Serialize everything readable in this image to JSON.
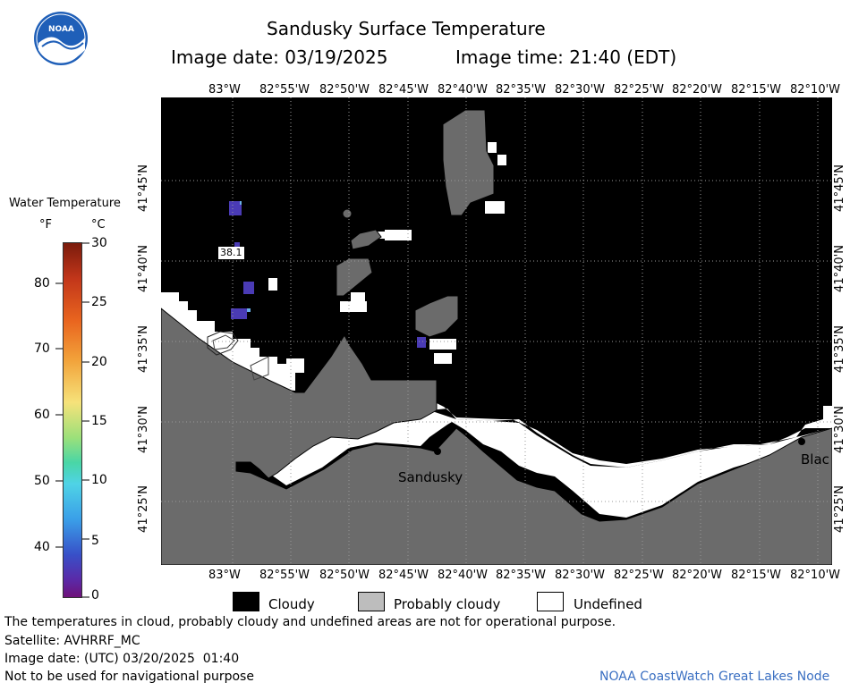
{
  "header": {
    "title": "Sandusky Surface Temperature",
    "date_label": "Image date: 03/19/2025",
    "time_label": "Image time: 21:40 (EDT)",
    "logo_text": "NOAA"
  },
  "map": {
    "lon_labels": [
      "83°W",
      "82°55'W",
      "82°50'W",
      "82°45'W",
      "82°40'W",
      "82°35'W",
      "82°30'W",
      "82°25'W",
      "82°20'W",
      "82°15'W",
      "82°10'W"
    ],
    "lat_labels": [
      "41°45'N",
      "41°40'N",
      "41°35'N",
      "41°30'N",
      "41°25'N"
    ],
    "city_sandusky": "Sandusky",
    "city_blac": "Blac",
    "temp_label": "38.1"
  },
  "colorbar": {
    "title": "Water Temperature",
    "unit_f": "°F",
    "unit_c": "°C",
    "f_ticks": [
      "80",
      "70",
      "60",
      "50",
      "40"
    ],
    "c_ticks": [
      "30",
      "25",
      "20",
      "15",
      "10",
      "5",
      "0"
    ]
  },
  "legend": {
    "cloudy": "Cloudy",
    "probably_cloudy": "Probably cloudy",
    "undefined": "Undefined"
  },
  "footer": {
    "disclaimer": "The temperatures in cloud, probably cloudy and undefined areas are not for operational purpose.",
    "satellite": "Satellite: AVHRRF_MC",
    "utc_date": "Image date: (UTC) 03/20/2025  01:40",
    "nav_warning": "Not to be used for navigational purpose",
    "credit": "NOAA CoastWatch Great Lakes Node"
  },
  "colors": {
    "cloudy": "#000000",
    "probably_cloudy": "#6b6b6b",
    "undefined": "#ffffff",
    "water_temp_low": "#5a2bb8",
    "credit": "#3a6fc2"
  }
}
